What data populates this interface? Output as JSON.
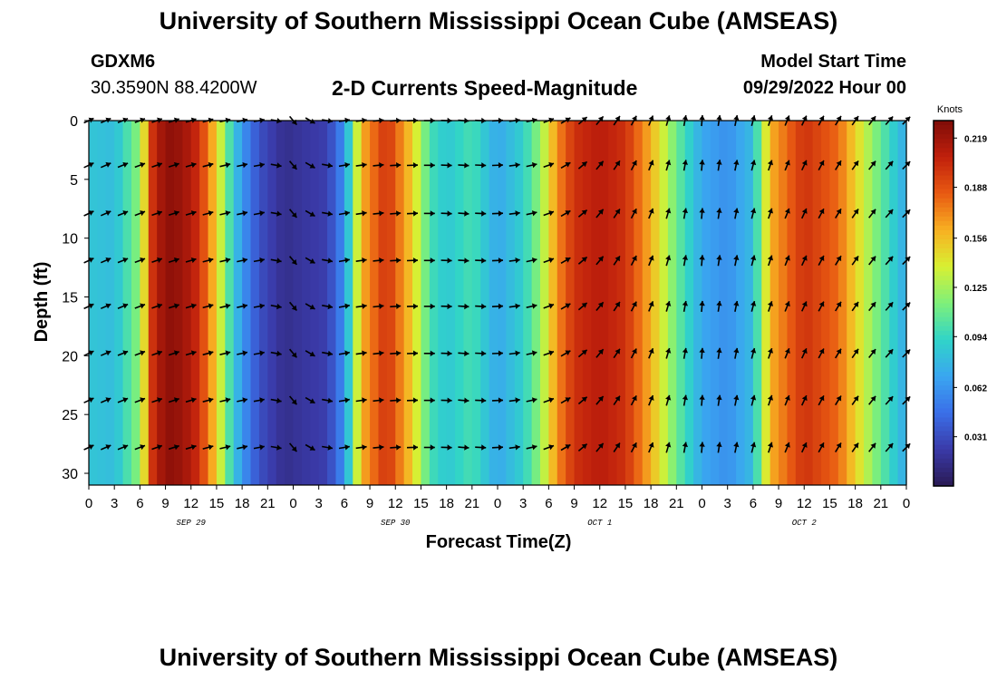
{
  "header": {
    "title": "University of Southern Mississippi Ocean Cube (AMSEAS)",
    "station": "GDXM6",
    "coords": "30.3590N  88.4200W",
    "chart_title": "2-D Currents Speed-Magnitude",
    "start_label": "Model Start Time",
    "start_value": "09/29/2022 Hour 00"
  },
  "footer": {
    "title": "University of Southern Mississippi Ocean Cube (AMSEAS)"
  },
  "colors": {
    "scale": [
      "#2a1a54",
      "#3a3aa8",
      "#3a6fe8",
      "#3aa6f0",
      "#30d4c8",
      "#7ef07a",
      "#d8f032",
      "#f8b022",
      "#e85a12",
      "#c0200c",
      "#7e0c08"
    ]
  },
  "chart_data": {
    "type": "heatmap",
    "title": "2-D Currents Speed-Magnitude",
    "xlabel": "Forecast Time(Z)",
    "ylabel": "Depth (ft)",
    "x_tick_labels": [
      "0",
      "3",
      "6",
      "9",
      "12",
      "15",
      "18",
      "21",
      "0",
      "3",
      "6",
      "9",
      "12",
      "15",
      "18",
      "21",
      "0",
      "3",
      "6",
      "9",
      "12",
      "15",
      "18",
      "21",
      "0",
      "3",
      "6",
      "9",
      "12",
      "15",
      "18",
      "21",
      "0"
    ],
    "x_step_hours": 3,
    "x_range_hours": [
      0,
      96
    ],
    "date_labels": [
      {
        "label": "SEP 29",
        "hour": 12
      },
      {
        "label": "SEP 30",
        "hour": 36
      },
      {
        "label": "OCT 1",
        "hour": 60
      },
      {
        "label": "OCT 2",
        "hour": 84
      }
    ],
    "y_ticks": [
      0,
      5,
      10,
      15,
      20,
      25,
      30
    ],
    "ylim": [
      31,
      0
    ],
    "arrow_depths_ft": [
      0,
      3.8,
      7.9,
      11.9,
      15.8,
      19.8,
      23.8,
      27.8
    ],
    "colorbar": {
      "unit": "Knots",
      "ticks": [
        "0.219",
        "0.188",
        "0.156",
        "0.125",
        "0.094",
        "0.062",
        "0.031"
      ],
      "max": 0.23
    },
    "speed_by_hour": [
      {
        "h": 0,
        "v": 0.085
      },
      {
        "h": 3,
        "v": 0.08
      },
      {
        "h": 6,
        "v": 0.12
      },
      {
        "h": 7.5,
        "v": 0.2
      },
      {
        "h": 9,
        "v": 0.225
      },
      {
        "h": 11,
        "v": 0.22
      },
      {
        "h": 13,
        "v": 0.2
      },
      {
        "h": 15,
        "v": 0.15
      },
      {
        "h": 17,
        "v": 0.085
      },
      {
        "h": 19,
        "v": 0.045
      },
      {
        "h": 20.5,
        "v": 0.03
      },
      {
        "h": 23,
        "v": 0.015
      },
      {
        "h": 25,
        "v": 0.02
      },
      {
        "h": 28,
        "v": 0.025
      },
      {
        "h": 30,
        "v": 0.06
      },
      {
        "h": 32,
        "v": 0.16
      },
      {
        "h": 35,
        "v": 0.2
      },
      {
        "h": 38,
        "v": 0.15
      },
      {
        "h": 40,
        "v": 0.1
      },
      {
        "h": 42,
        "v": 0.085
      },
      {
        "h": 45,
        "v": 0.1
      },
      {
        "h": 48,
        "v": 0.07
      },
      {
        "h": 51,
        "v": 0.09
      },
      {
        "h": 53,
        "v": 0.12
      },
      {
        "h": 55,
        "v": 0.17
      },
      {
        "h": 57,
        "v": 0.2
      },
      {
        "h": 60,
        "v": 0.21
      },
      {
        "h": 63,
        "v": 0.2
      },
      {
        "h": 66,
        "v": 0.16
      },
      {
        "h": 69,
        "v": 0.11
      },
      {
        "h": 72,
        "v": 0.07
      },
      {
        "h": 75,
        "v": 0.06
      },
      {
        "h": 78,
        "v": 0.08
      },
      {
        "h": 80,
        "v": 0.16
      },
      {
        "h": 84,
        "v": 0.2
      },
      {
        "h": 88,
        "v": 0.18
      },
      {
        "h": 92,
        "v": 0.12
      },
      {
        "h": 96,
        "v": 0.07
      }
    ],
    "arrow_direction_deg_by_hour": [
      {
        "h": 0,
        "v": 65
      },
      {
        "h": 21,
        "v": 80
      },
      {
        "h": 24,
        "v": 140
      },
      {
        "h": 30,
        "v": 80
      },
      {
        "h": 45,
        "v": 95
      },
      {
        "h": 53,
        "v": 75
      },
      {
        "h": 60,
        "v": 40
      },
      {
        "h": 72,
        "v": 5
      },
      {
        "h": 96,
        "v": 45
      }
    ]
  }
}
